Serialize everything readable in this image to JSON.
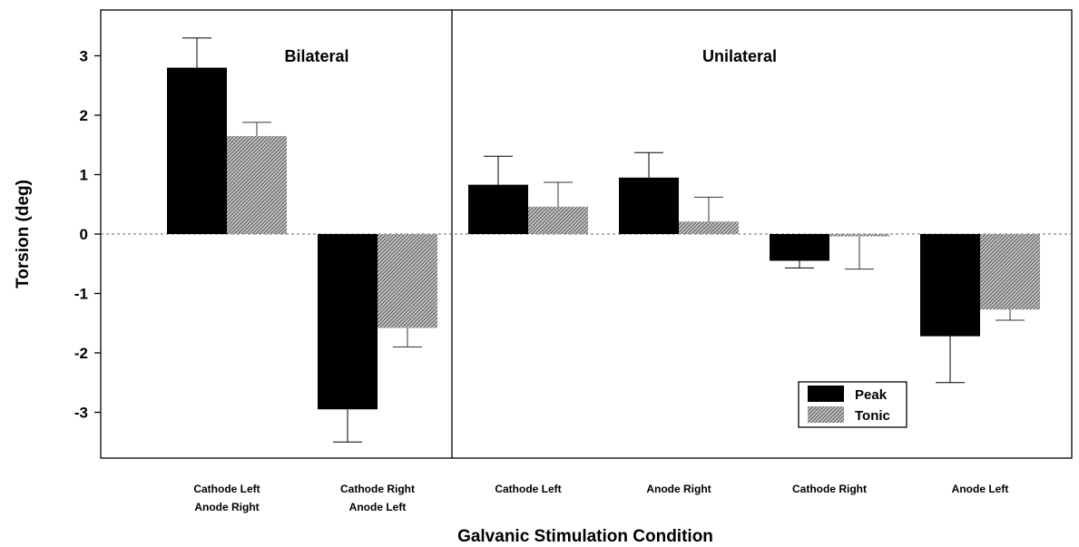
{
  "chart_data": {
    "type": "bar",
    "ylabel": "Torsion (deg)",
    "xlabel": "Galvanic Stimulation Condition",
    "ylim": [
      -3.8,
      3.8
    ],
    "yticks": [
      3,
      2,
      1,
      0,
      -1,
      -2,
      -3
    ],
    "ytick_labels": [
      "3",
      "2",
      "1",
      "0",
      "-1",
      "-2",
      "-3"
    ],
    "zero_reference_line": "dashed",
    "panels": [
      "Bilateral",
      "Unilateral"
    ],
    "categories": [
      {
        "line1": "Cathode Left",
        "line2": "Anode Right",
        "panel": "Bilateral"
      },
      {
        "line1": "Cathode Right",
        "line2": "Anode Left",
        "panel": "Bilateral"
      },
      {
        "line1": "Cathode Left",
        "line2": "",
        "panel": "Unilateral"
      },
      {
        "line1": "Anode Right",
        "line2": "",
        "panel": "Unilateral"
      },
      {
        "line1": "Cathode Right",
        "line2": "",
        "panel": "Unilateral"
      },
      {
        "line1": "Anode Left",
        "line2": "",
        "panel": "Unilateral"
      }
    ],
    "series": [
      {
        "name": "Peak",
        "color": "#000000",
        "fill": "solid",
        "values": [
          2.8,
          -2.95,
          0.83,
          0.95,
          -0.45,
          -1.72
        ],
        "error": [
          0.5,
          0.55,
          0.48,
          0.42,
          0.12,
          0.78
        ]
      },
      {
        "name": "Tonic",
        "color": "#a8a8a8",
        "fill": "crosshatch",
        "values": [
          1.65,
          -1.58,
          0.46,
          0.21,
          -0.04,
          -1.27
        ],
        "error": [
          0.23,
          0.32,
          0.41,
          0.41,
          0.55,
          0.18
        ]
      }
    ],
    "legend_position": "lower-right"
  }
}
